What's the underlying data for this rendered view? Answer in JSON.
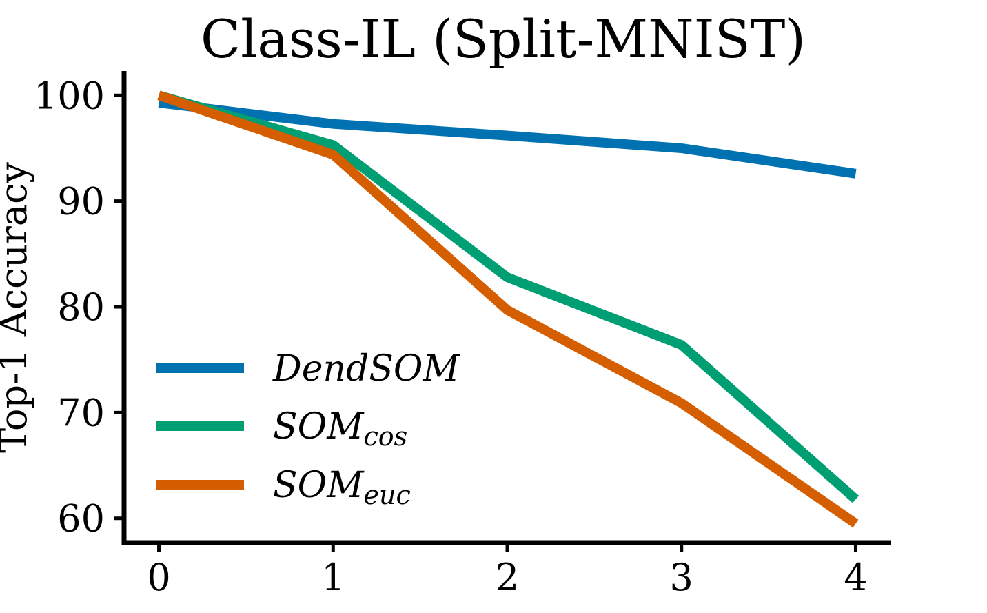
{
  "chart_data": {
    "type": "line",
    "title": "Class-IL (Split-MNIST)",
    "xlabel": "",
    "ylabel": "Top-1 Accuracy",
    "x": [
      0,
      1,
      2,
      3,
      4
    ],
    "xticks": [
      "0",
      "1",
      "2",
      "3",
      "4"
    ],
    "yticks": [
      "60",
      "70",
      "80",
      "90",
      "100"
    ],
    "ytick_values": [
      60,
      70,
      80,
      90,
      100
    ],
    "xlim": [
      -0.2,
      4.2
    ],
    "ylim": [
      57.7,
      102.3
    ],
    "grid": false,
    "legend_position": "lower-left",
    "series": [
      {
        "name": "DendSOM",
        "name_main": "DendSOM",
        "name_sub": "",
        "color": "#0072B2",
        "values": [
          99.3,
          97.3,
          96.2,
          95.0,
          92.6
        ]
      },
      {
        "name": "SOMcos",
        "name_main": "SOM",
        "name_sub": "cos",
        "color": "#009E73",
        "values": [
          100.0,
          95.3,
          82.8,
          76.4,
          61.8
        ]
      },
      {
        "name": "SOMeuc",
        "name_main": "SOM",
        "name_sub": "euc",
        "color": "#D55E00",
        "values": [
          100.0,
          94.4,
          79.7,
          70.9,
          59.5
        ]
      }
    ]
  }
}
